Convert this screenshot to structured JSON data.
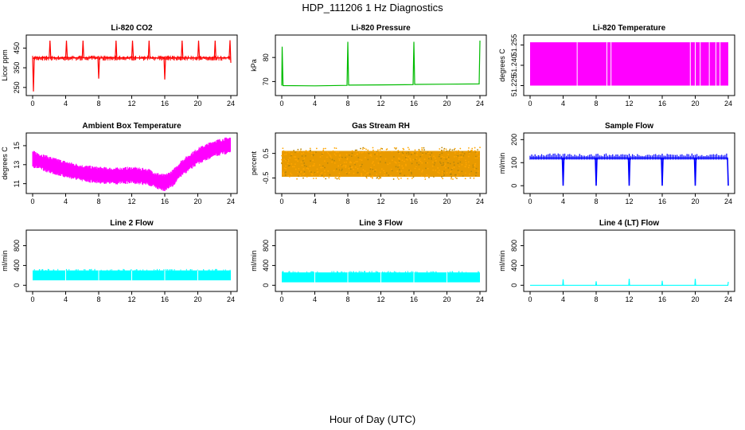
{
  "figure": {
    "title": "HDP_111206  1 Hz Diagnostics",
    "xlabel": "Hour of Day (UTC)"
  },
  "chart_data": [
    {
      "type": "line",
      "title": "Li-820 CO2",
      "ylabel": "Licor ppm",
      "color": "#ff0000",
      "xlim": [
        0,
        24
      ],
      "xticks": [
        0,
        4,
        8,
        12,
        16,
        20,
        24
      ],
      "ylim": [
        225,
        500
      ],
      "yticks": [
        250,
        350,
        450
      ],
      "series": [
        {
          "x": [
            0,
            0.1,
            0.2,
            1,
            2,
            2.1,
            2.2,
            3,
            4,
            4.1,
            4.2,
            5,
            6,
            6.1,
            6.2,
            7,
            7.9,
            8,
            8.1,
            9,
            10,
            10.1,
            10.2,
            11,
            12,
            12.1,
            12.2,
            13,
            14,
            14.1,
            14.2,
            15,
            15.9,
            16,
            16.1,
            17,
            18,
            18.1,
            18.2,
            19,
            20,
            20.1,
            20.2,
            21,
            22,
            22.1,
            22.2,
            23,
            23.8,
            23.9,
            24
          ],
          "y": [
            402,
            230,
            400,
            401,
            400,
            488,
            401,
            400,
            401,
            488,
            400,
            401,
            400,
            488,
            401,
            400,
            401,
            295,
            400,
            401,
            400,
            488,
            401,
            400,
            401,
            488,
            400,
            401,
            400,
            488,
            401,
            400,
            401,
            290,
            400,
            401,
            400,
            488,
            401,
            400,
            401,
            488,
            400,
            401,
            400,
            488,
            401,
            400,
            401,
            490,
            375
          ]
        }
      ]
    },
    {
      "type": "line",
      "title": "Li-820 Pressure",
      "ylabel": "kPa",
      "color": "#00bb00",
      "xlim": [
        0,
        24
      ],
      "xticks": [
        0,
        4,
        8,
        12,
        16,
        20,
        24
      ],
      "ylim": [
        65.5,
        88
      ],
      "yticks": [
        70,
        80
      ],
      "series": [
        {
          "x": [
            0,
            0.05,
            0.15,
            4,
            7.9,
            8,
            8.1,
            12,
            15.9,
            16,
            16.1,
            20,
            23.9,
            24
          ],
          "y": [
            68.3,
            84.5,
            68.3,
            68.2,
            68.4,
            86.5,
            68.5,
            68.6,
            68.7,
            86.5,
            68.8,
            68.9,
            69.0,
            87.0
          ]
        }
      ]
    },
    {
      "type": "area",
      "title": "Li-820 Temperature",
      "ylabel": "degrees C",
      "color": "#ff00ff",
      "xlim": [
        0,
        24
      ],
      "xticks": [
        0,
        4,
        8,
        12,
        16,
        20,
        24
      ],
      "ylim": [
        51.22,
        51.26
      ],
      "yticks": [
        51.225,
        51.24,
        51.255
      ],
      "yticklabels": [
        "51.225",
        "51.240",
        "51.255"
      ],
      "band": [
        51.225,
        51.257
      ]
    },
    {
      "type": "line",
      "title": "Ambient Box Temperature",
      "ylabel": "degrees C",
      "color": "#ff00ff",
      "xlim": [
        0,
        24
      ],
      "xticks": [
        0,
        4,
        8,
        12,
        16,
        20,
        24
      ],
      "ylim": [
        10.3,
        16.0
      ],
      "yticks": [
        11,
        13,
        15
      ],
      "series": [
        {
          "x": [
            0,
            2,
            4,
            6,
            8,
            10,
            12,
            14,
            15,
            16,
            17,
            18,
            20,
            22,
            24
          ],
          "y": [
            13.6,
            13.0,
            12.5,
            12.1,
            11.9,
            11.8,
            11.9,
            11.7,
            11.3,
            11.1,
            11.6,
            12.6,
            13.9,
            14.7,
            15.1
          ]
        }
      ]
    },
    {
      "type": "scatter",
      "title": "Gas Stream RH",
      "ylabel": "percent",
      "color": "#ffa500",
      "xlim": [
        0,
        24
      ],
      "xticks": [
        0,
        4,
        8,
        12,
        16,
        20,
        24
      ],
      "ylim": [
        -1.0,
        1.2
      ],
      "yticks": [
        -0.5,
        0.5
      ],
      "band": [
        -0.55,
        0.75
      ]
    },
    {
      "type": "line",
      "title": "Sample Flow",
      "ylabel": "ml/min",
      "color": "#0000ff",
      "xlim": [
        0,
        24
      ],
      "xticks": [
        0,
        4,
        8,
        12,
        16,
        20,
        24
      ],
      "ylim": [
        -20,
        215
      ],
      "yticks": [
        0,
        100,
        200
      ],
      "series": [
        {
          "x": [
            0,
            3.9,
            4,
            4.1,
            7.9,
            8,
            8.1,
            11.9,
            12,
            12.1,
            15.9,
            16,
            16.1,
            19.9,
            20,
            20.1,
            23.9,
            24
          ],
          "y": [
            120,
            120,
            0,
            120,
            120,
            0,
            120,
            120,
            0,
            120,
            120,
            0,
            120,
            120,
            0,
            120,
            120,
            0
          ]
        }
      ]
    },
    {
      "type": "area",
      "title": "Line 2 Flow",
      "ylabel": "ml/min",
      "color": "#00ffff",
      "xlim": [
        0,
        24
      ],
      "xticks": [
        0,
        4,
        8,
        12,
        16,
        20,
        24
      ],
      "ylim": [
        -60,
        1050
      ],
      "yticks": [
        0,
        400,
        800
      ],
      "band": [
        100,
        300
      ]
    },
    {
      "type": "area",
      "title": "Line 3 Flow",
      "ylabel": "ml/min",
      "color": "#00ffff",
      "xlim": [
        0,
        24
      ],
      "xticks": [
        0,
        4,
        8,
        12,
        16,
        20,
        24
      ],
      "ylim": [
        -60,
        1050
      ],
      "yticks": [
        0,
        400,
        800
      ],
      "band": [
        60,
        260
      ]
    },
    {
      "type": "line",
      "title": "Line 4 (LT) Flow",
      "ylabel": "ml/min",
      "color": "#00ffff",
      "xlim": [
        0,
        24
      ],
      "xticks": [
        0,
        4,
        8,
        12,
        16,
        20,
        24
      ],
      "ylim": [
        -60,
        1050
      ],
      "yticks": [
        0,
        400,
        800
      ],
      "series": [
        {
          "x": [
            0,
            3.95,
            4,
            4.05,
            7.95,
            8,
            8.05,
            11.95,
            12,
            12.05,
            15.95,
            16,
            16.05,
            19.95,
            20,
            20.05,
            23.95,
            24
          ],
          "y": [
            0,
            0,
            120,
            0,
            0,
            80,
            0,
            0,
            130,
            0,
            0,
            90,
            0,
            0,
            130,
            0,
            0,
            70
          ]
        }
      ]
    }
  ]
}
